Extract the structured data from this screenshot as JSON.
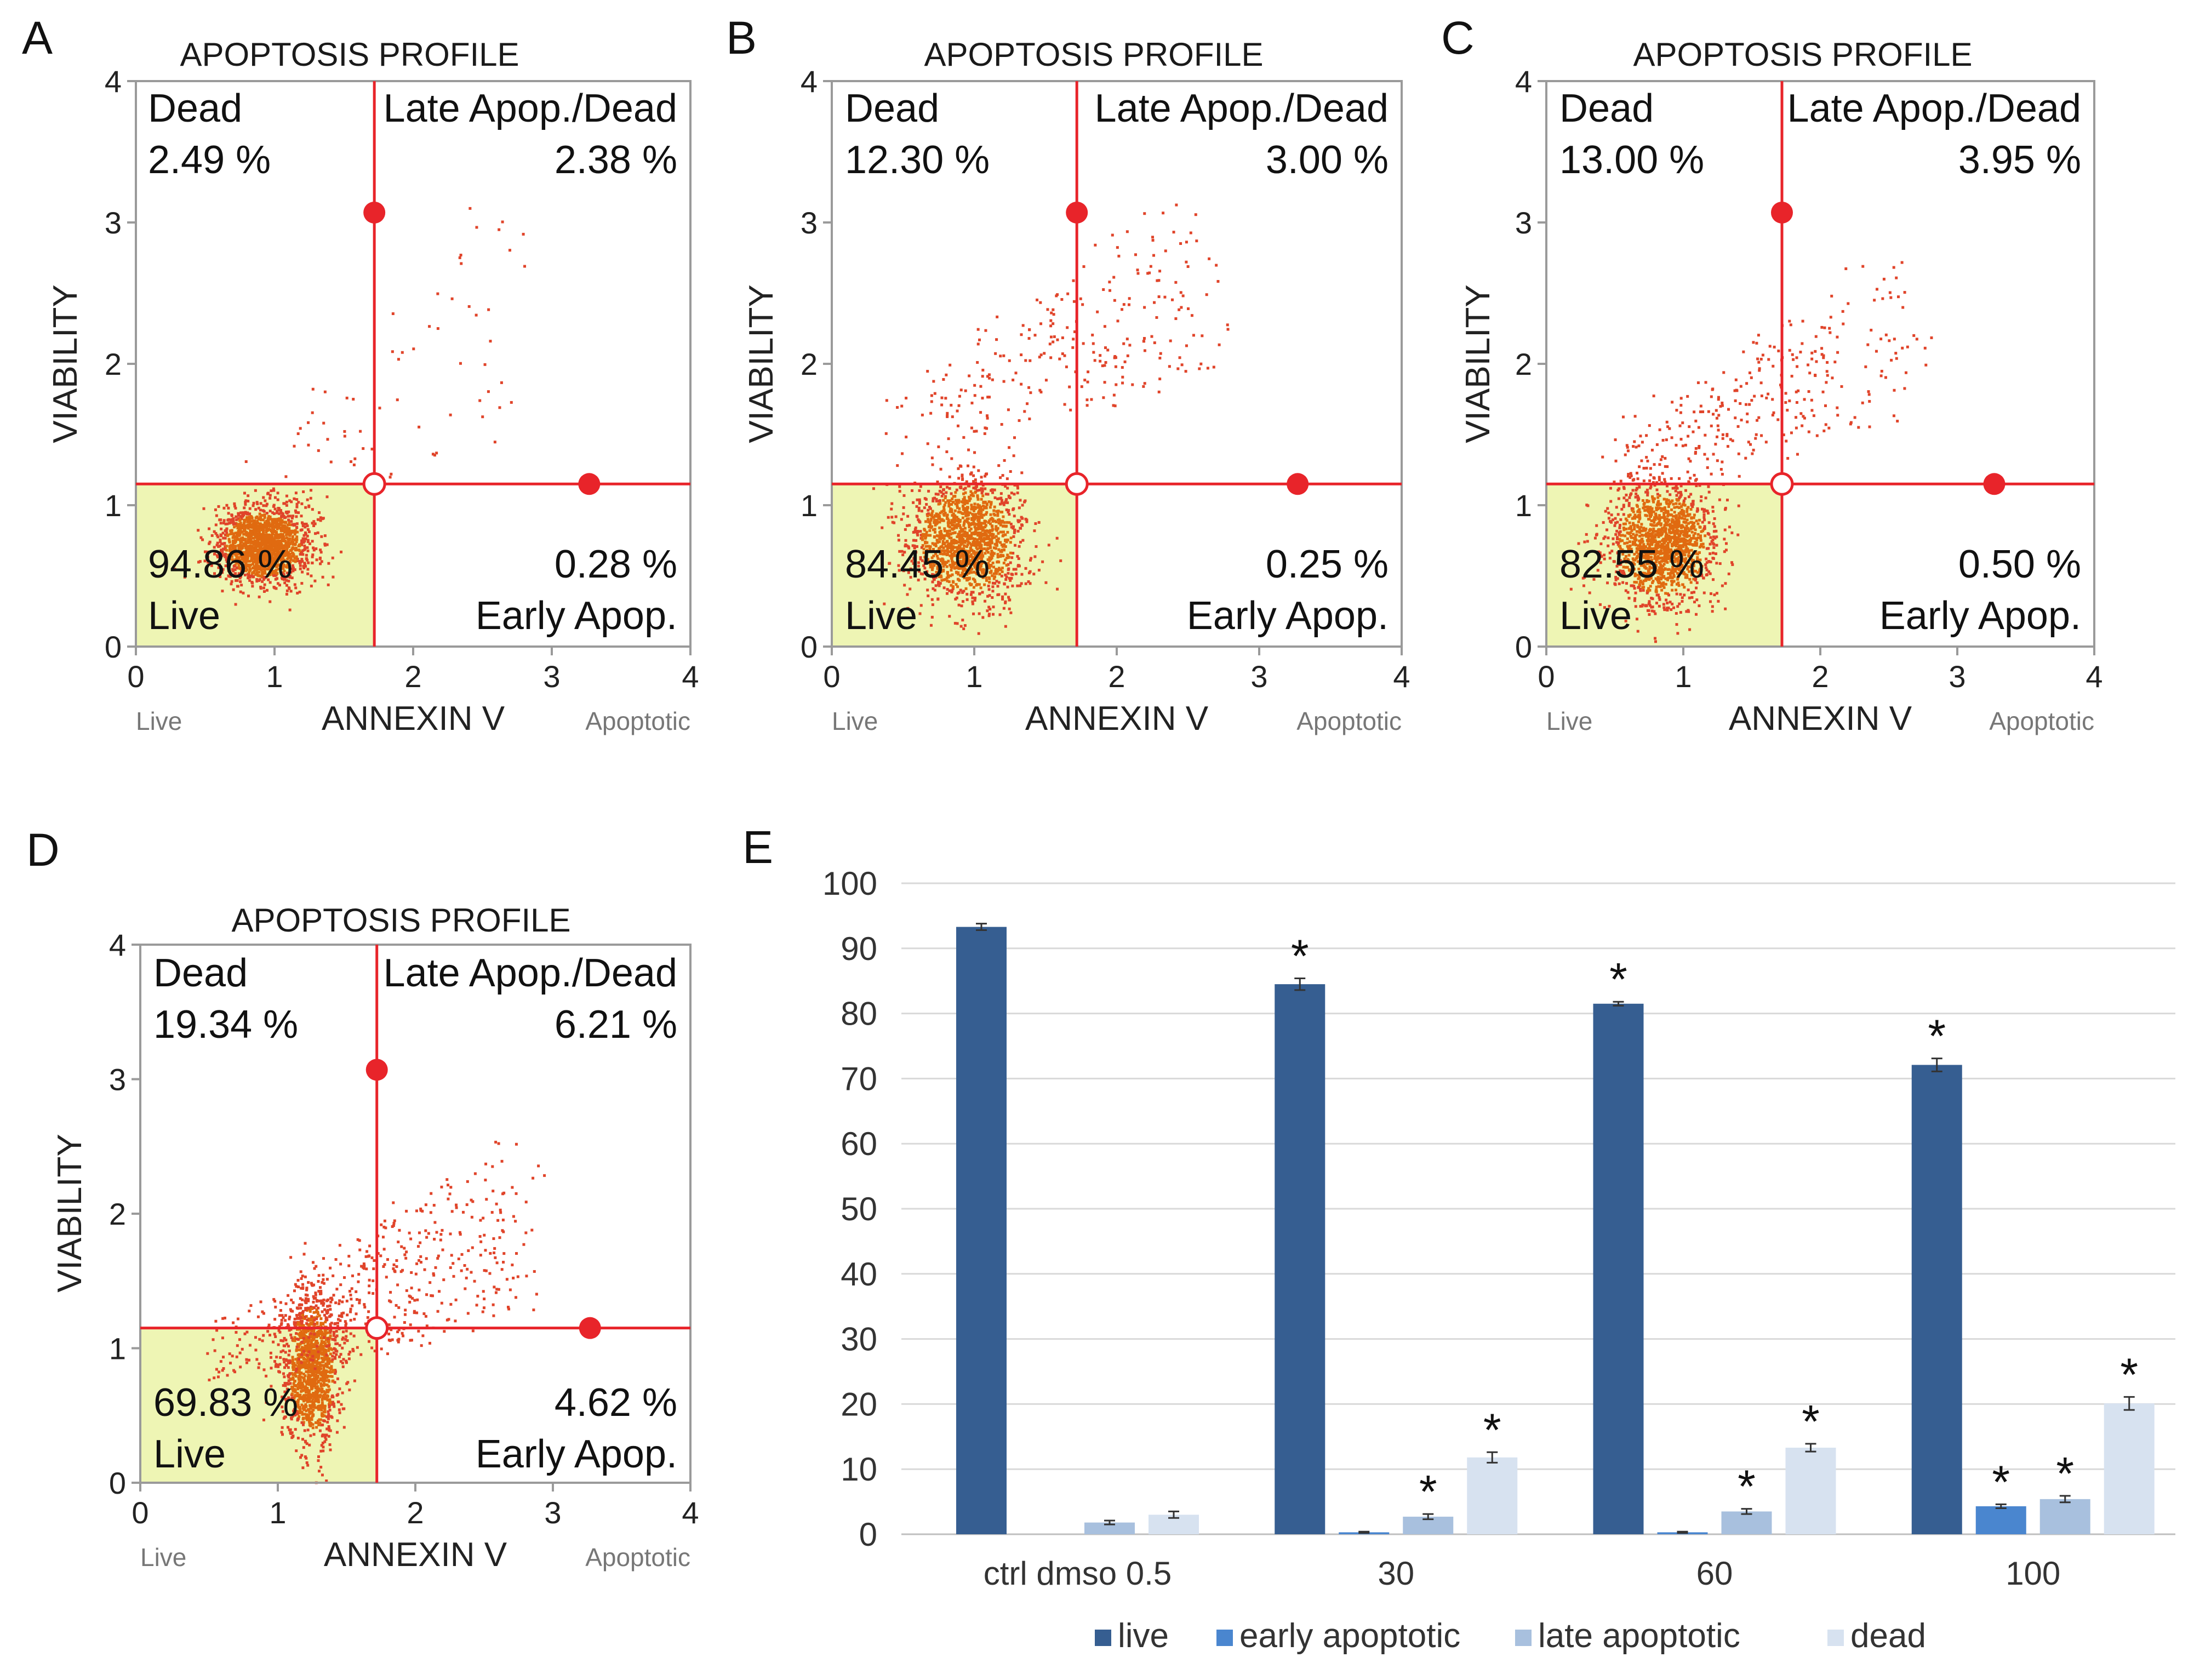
{
  "figure_panels": [
    {
      "label": "A",
      "title": "APOPTOSIS PROFILE",
      "x_axis_label": "ANNEXIN V",
      "y_axis_label": "VIABILITY",
      "x_left_label": "Live",
      "x_right_label": "Apoptotic",
      "quadrants": {
        "dead_name": "Dead",
        "dead_pct": "2.49 %",
        "late_name": "Late Apop./Dead",
        "late_pct": "2.38 %",
        "live_name": "Live",
        "live_pct": "94.86 %",
        "early_name": "Early Apop.",
        "early_pct": "0.28 %"
      }
    },
    {
      "label": "B",
      "title": "APOPTOSIS PROFILE",
      "x_axis_label": "ANNEXIN V",
      "y_axis_label": "VIABILITY",
      "x_left_label": "Live",
      "x_right_label": "Apoptotic",
      "quadrants": {
        "dead_name": "Dead",
        "dead_pct": "12.30 %",
        "late_name": "Late Apop./Dead",
        "late_pct": "3.00 %",
        "live_name": "Live",
        "live_pct": "84.45 %",
        "early_name": "Early Apop.",
        "early_pct": "0.25 %"
      }
    },
    {
      "label": "C",
      "title": "APOPTOSIS PROFILE",
      "x_axis_label": "ANNEXIN V",
      "y_axis_label": "VIABILITY",
      "x_left_label": "Live",
      "x_right_label": "Apoptotic",
      "quadrants": {
        "dead_name": "Dead",
        "dead_pct": "13.00 %",
        "late_name": "Late Apop./Dead",
        "late_pct": "3.95 %",
        "live_name": "Live",
        "live_pct": "82.55 %",
        "early_name": "Early Apop.",
        "early_pct": "0.50 %"
      }
    },
    {
      "label": "D",
      "title": "APOPTOSIS PROFILE",
      "x_axis_label": "ANNEXIN V",
      "y_axis_label": "VIABILITY",
      "x_left_label": "Live",
      "x_right_label": "Apoptotic",
      "quadrants": {
        "dead_name": "Dead",
        "dead_pct": "19.34 %",
        "late_name": "Late Apop./Dead",
        "late_pct": "6.21 %",
        "live_name": "Live",
        "live_pct": "69.83 %",
        "early_name": "Early Apop.",
        "early_pct": "4.62 %"
      }
    }
  ],
  "chart_data": [
    {
      "panel": "A",
      "type": "scatter",
      "title": "APOPTOSIS PROFILE",
      "xlabel": "ANNEXIN V",
      "ylabel": "VIABILITY",
      "xlim": [
        0,
        4
      ],
      "ylim": [
        0,
        4
      ],
      "x_ticks": [
        0,
        1,
        2,
        3,
        4
      ],
      "y_ticks": [
        0,
        1,
        2,
        3,
        4
      ],
      "gate_x": 1.72,
      "gate_y": 1.15,
      "gate_handles": [
        [
          1.72,
          3.07
        ],
        [
          3.27,
          1.15
        ]
      ],
      "quadrant_percentages": {
        "dead": 2.49,
        "late_apoptotic_dead": 2.38,
        "live": 94.86,
        "early_apoptotic": 0.28
      },
      "population": {
        "n": 1600,
        "center": [
          0.92,
          0.72
        ],
        "spread": [
          0.17,
          0.14
        ],
        "diffuse_n": 70,
        "diffuse_x": [
          1.0,
          2.7
        ],
        "diffuse_y": [
          0.4,
          3.2
        ]
      },
      "color": "#e0442a",
      "dense_color": "#e06a10"
    },
    {
      "panel": "B",
      "type": "scatter",
      "title": "APOPTOSIS PROFILE",
      "xlabel": "ANNEXIN V",
      "ylabel": "VIABILITY",
      "xlim": [
        0,
        4
      ],
      "ylim": [
        0,
        4
      ],
      "x_ticks": [
        0,
        1,
        2,
        3,
        4
      ],
      "y_ticks": [
        0,
        1,
        2,
        3,
        4
      ],
      "gate_x": 1.72,
      "gate_y": 1.15,
      "gate_handles": [
        [
          1.72,
          3.07
        ],
        [
          3.27,
          1.15
        ]
      ],
      "quadrant_percentages": {
        "dead": 12.3,
        "late_apoptotic_dead": 3.0,
        "live": 84.45,
        "early_apoptotic": 0.25
      },
      "population": {
        "n": 1500,
        "center": [
          0.95,
          0.75
        ],
        "spread": [
          0.2,
          0.22
        ],
        "diffuse_n": 260,
        "diffuse_x": [
          0.6,
          2.6
        ],
        "diffuse_y": [
          1.0,
          3.3
        ]
      },
      "color": "#e0442a",
      "dense_color": "#e06a10"
    },
    {
      "panel": "C",
      "type": "scatter",
      "title": "APOPTOSIS PROFILE",
      "xlabel": "ANNEXIN V",
      "ylabel": "VIABILITY",
      "xlim": [
        0,
        4
      ],
      "ylim": [
        0,
        4
      ],
      "x_ticks": [
        0,
        1,
        2,
        3,
        4
      ],
      "y_ticks": [
        0,
        1,
        2,
        3,
        4
      ],
      "gate_x": 1.72,
      "gate_y": 1.15,
      "gate_handles": [
        [
          1.72,
          3.07
        ],
        [
          3.27,
          1.15
        ]
      ],
      "quadrant_percentages": {
        "dead": 13.0,
        "late_apoptotic_dead": 3.95,
        "live": 82.55,
        "early_apoptotic": 0.5
      },
      "population": {
        "n": 1450,
        "center": [
          0.85,
          0.72
        ],
        "spread": [
          0.2,
          0.22
        ],
        "diffuse_n": 300,
        "diffuse_x": [
          0.6,
          2.6
        ],
        "diffuse_y": [
          0.8,
          2.8
        ]
      },
      "color": "#e0442a",
      "dense_color": "#e06a10"
    },
    {
      "panel": "D",
      "type": "scatter",
      "title": "APOPTOSIS PROFILE",
      "xlabel": "ANNEXIN V",
      "ylabel": "VIABILITY",
      "xlim": [
        0,
        4
      ],
      "ylim": [
        0,
        4
      ],
      "x_ticks": [
        0,
        1,
        2,
        3,
        4
      ],
      "y_ticks": [
        0,
        1,
        2,
        3,
        4
      ],
      "gate_x": 1.72,
      "gate_y": 1.15,
      "gate_handles": [
        [
          1.72,
          3.07
        ],
        [
          3.27,
          1.15
        ]
      ],
      "quadrant_percentages": {
        "dead": 19.34,
        "late_apoptotic_dead": 6.21,
        "live": 69.83,
        "early_apoptotic": 4.62
      },
      "population": {
        "n": 1300,
        "center": [
          1.25,
          0.85
        ],
        "spread": [
          0.1,
          0.28
        ],
        "diffuse_n": 520,
        "diffuse_x": [
          0.7,
          2.8
        ],
        "diffuse_y": [
          0.4,
          2.6
        ]
      },
      "color": "#e0442a",
      "dense_color": "#e06a10"
    },
    {
      "panel": "E",
      "type": "bar",
      "categories": [
        "ctrl dmso 0.5",
        "30",
        "60",
        "100"
      ],
      "series": [
        {
          "name": "live",
          "color": "#365e91",
          "values": [
            93.3,
            84.5,
            81.5,
            72.1
          ],
          "errors": [
            0.5,
            0.9,
            0.3,
            1.0
          ],
          "significant": [
            false,
            true,
            true,
            true
          ]
        },
        {
          "name": "early apoptotic",
          "color": "#4a86cf",
          "values": [
            0.0,
            0.3,
            0.3,
            4.3
          ],
          "errors": [
            0.0,
            0.1,
            0.1,
            0.3
          ],
          "significant": [
            false,
            false,
            false,
            true
          ]
        },
        {
          "name": "late apoptotic",
          "color": "#a8c0de",
          "values": [
            1.8,
            2.7,
            3.5,
            5.4
          ],
          "errors": [
            0.3,
            0.4,
            0.4,
            0.5
          ],
          "significant": [
            false,
            true,
            true,
            true
          ]
        },
        {
          "name": "dead",
          "color": "#d7e2f0",
          "values": [
            3.0,
            11.8,
            13.3,
            20.1
          ],
          "errors": [
            0.5,
            0.8,
            0.6,
            1.0
          ],
          "significant": [
            false,
            true,
            true,
            true
          ]
        }
      ],
      "significance_marker": "*",
      "ylim": [
        0,
        100
      ],
      "y_ticks": [
        0,
        10,
        20,
        30,
        40,
        50,
        60,
        70,
        80,
        90,
        100
      ],
      "grid": true,
      "legend_position": "bottom"
    }
  ],
  "colors": {
    "gate_line": "#e8242a",
    "live_region": "#eef5b4",
    "axis": "#9a9a9a",
    "gridline": "#d9d9d9"
  }
}
